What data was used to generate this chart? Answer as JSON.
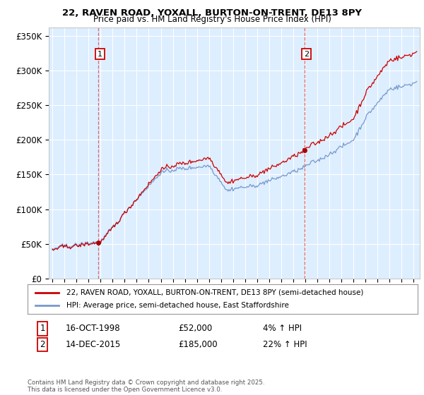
{
  "title1": "22, RAVEN ROAD, YOXALL, BURTON-ON-TRENT, DE13 8PY",
  "title2": "Price paid vs. HM Land Registry's House Price Index (HPI)",
  "ylabel_values": [
    "£0",
    "£50K",
    "£100K",
    "£150K",
    "£200K",
    "£250K",
    "£300K",
    "£350K"
  ],
  "ytick_values": [
    0,
    50000,
    100000,
    150000,
    200000,
    250000,
    300000,
    350000
  ],
  "ylim": [
    0,
    362000
  ],
  "xlim_start": 1994.7,
  "xlim_end": 2025.5,
  "purchase1_x": 1998.79,
  "purchase1_y": 52000,
  "purchase1_label": "1",
  "purchase1_date": "16-OCT-1998",
  "purchase1_price": "£52,000",
  "purchase1_hpi": "4% ↑ HPI",
  "purchase2_x": 2015.95,
  "purchase2_y": 185000,
  "purchase2_label": "2",
  "purchase2_date": "14-DEC-2015",
  "purchase2_price": "£185,000",
  "purchase2_hpi": "22% ↑ HPI",
  "legend_line1": "22, RAVEN ROAD, YOXALL, BURTON-ON-TRENT, DE13 8PY (semi-detached house)",
  "legend_line2": "HPI: Average price, semi-detached house, East Staffordshire",
  "footer": "Contains HM Land Registry data © Crown copyright and database right 2025.\nThis data is licensed under the Open Government Licence v3.0.",
  "line_color_red": "#cc0000",
  "line_color_blue": "#7799cc",
  "vline_color": "#dd4444",
  "marker_color_red": "#aa0000",
  "bg_color": "#ffffff",
  "plot_bg_color": "#ddeeff",
  "grid_color": "#ffffff",
  "box_border_color": "#cc0000"
}
